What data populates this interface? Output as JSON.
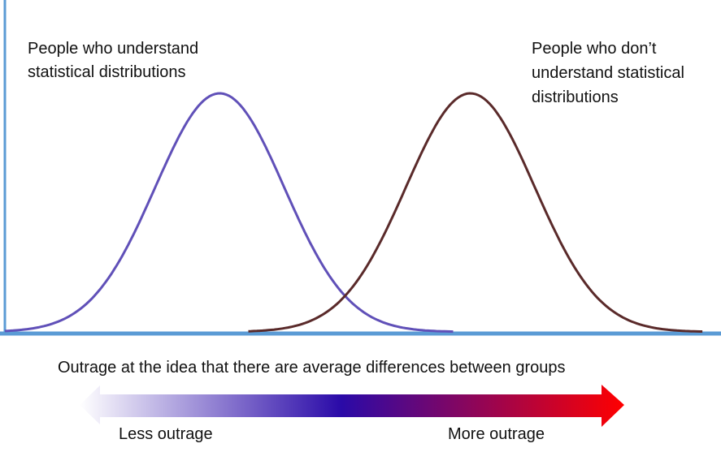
{
  "chart_data": {
    "type": "line",
    "title": "",
    "xlabel": "Outrage at the idea that there are average differences between groups",
    "ylabel": "",
    "xlim": [
      0,
      10
    ],
    "series": [
      {
        "name": "People who understand statistical distributions",
        "label_lines": [
          "People who understand",
          "statistical distributions"
        ],
        "color": "#6050b8",
        "distribution": "normal",
        "mean": 3.0,
        "sd": 0.9,
        "x_range": [
          0,
          6.26
        ]
      },
      {
        "name": "People who don’t understand statistical distributions",
        "label_lines": [
          "People who don’t",
          "understand statistical",
          "distributions"
        ],
        "color": "#5a2a2a",
        "distribution": "normal",
        "mean": 6.5,
        "sd": 0.9,
        "x_range": [
          3.4,
          9.74
        ]
      }
    ],
    "gradient_arrow": {
      "left_label": "Less outrage",
      "right_label": "More outrage",
      "colors": [
        "#ffffff",
        "#2a0aa8",
        "#ff0000"
      ]
    },
    "axis_color": "#5b9bd5",
    "grid": false,
    "legend": "none"
  }
}
